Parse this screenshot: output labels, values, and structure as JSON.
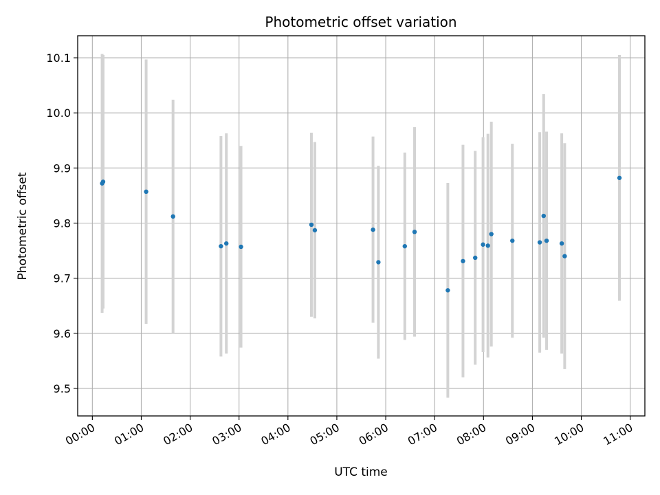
{
  "chart_data": {
    "type": "scatter",
    "title": "Photometric offset variation",
    "xlabel": "UTC time",
    "ylabel": "Photometric offset",
    "x_unit": "hours",
    "xlim": [
      -0.3,
      11.3
    ],
    "ylim": [
      9.45,
      10.14
    ],
    "x_ticks": [
      {
        "value": 0,
        "label": "00:00"
      },
      {
        "value": 1,
        "label": "01:00"
      },
      {
        "value": 2,
        "label": "02:00"
      },
      {
        "value": 3,
        "label": "03:00"
      },
      {
        "value": 4,
        "label": "04:00"
      },
      {
        "value": 5,
        "label": "05:00"
      },
      {
        "value": 6,
        "label": "06:00"
      },
      {
        "value": 7,
        "label": "07:00"
      },
      {
        "value": 8,
        "label": "08:00"
      },
      {
        "value": 9,
        "label": "09:00"
      },
      {
        "value": 10,
        "label": "10:00"
      },
      {
        "value": 11,
        "label": "11:00"
      }
    ],
    "y_ticks": [
      {
        "value": 9.5,
        "label": "9.5"
      },
      {
        "value": 9.6,
        "label": "9.6"
      },
      {
        "value": 9.7,
        "label": "9.7"
      },
      {
        "value": 9.8,
        "label": "9.8"
      },
      {
        "value": 9.9,
        "label": "9.9"
      },
      {
        "value": 10.0,
        "label": "10.0"
      },
      {
        "value": 10.1,
        "label": "10.1"
      }
    ],
    "grid": true,
    "marker_color": "#1f77b4",
    "errorbar_color": "#d3d3d3",
    "points": [
      {
        "x": 0.2,
        "y": 9.872,
        "yerr": 0.235
      },
      {
        "x": 0.22,
        "y": 9.875,
        "yerr": 0.23
      },
      {
        "x": 1.1,
        "y": 9.857,
        "yerr": 0.24
      },
      {
        "x": 1.65,
        "y": 9.812,
        "yerr": 0.212
      },
      {
        "x": 2.63,
        "y": 9.758,
        "yerr": 0.2
      },
      {
        "x": 2.74,
        "y": 9.763,
        "yerr": 0.2
      },
      {
        "x": 3.04,
        "y": 9.757,
        "yerr": 0.183
      },
      {
        "x": 4.48,
        "y": 9.797,
        "yerr": 0.167
      },
      {
        "x": 4.55,
        "y": 9.787,
        "yerr": 0.16
      },
      {
        "x": 5.74,
        "y": 9.788,
        "yerr": 0.169
      },
      {
        "x": 5.85,
        "y": 9.729,
        "yerr": 0.175
      },
      {
        "x": 6.39,
        "y": 9.758,
        "yerr": 0.17
      },
      {
        "x": 6.59,
        "y": 9.784,
        "yerr": 0.19
      },
      {
        "x": 7.27,
        "y": 9.678,
        "yerr": 0.195
      },
      {
        "x": 7.58,
        "y": 9.731,
        "yerr": 0.211
      },
      {
        "x": 7.83,
        "y": 9.737,
        "yerr": 0.194
      },
      {
        "x": 7.99,
        "y": 9.761,
        "yerr": 0.195
      },
      {
        "x": 8.09,
        "y": 9.759,
        "yerr": 0.203
      },
      {
        "x": 8.16,
        "y": 9.78,
        "yerr": 0.204
      },
      {
        "x": 8.59,
        "y": 9.768,
        "yerr": 0.176
      },
      {
        "x": 9.15,
        "y": 9.765,
        "yerr": 0.2
      },
      {
        "x": 9.23,
        "y": 9.813,
        "yerr": 0.221
      },
      {
        "x": 9.29,
        "y": 9.768,
        "yerr": 0.198
      },
      {
        "x": 9.6,
        "y": 9.763,
        "yerr": 0.2
      },
      {
        "x": 9.66,
        "y": 9.74,
        "yerr": 0.205
      },
      {
        "x": 10.78,
        "y": 9.882,
        "yerr": 0.223
      }
    ]
  }
}
